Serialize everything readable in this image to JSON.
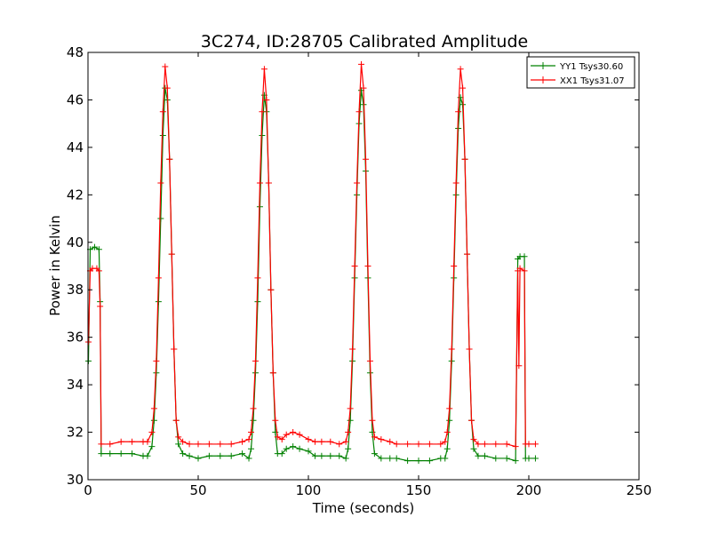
{
  "chart_data": {
    "type": "line",
    "title": "3C274, ID:28705 Calibrated Amplitude",
    "xlabel": "Time (seconds)",
    "ylabel": "Power in Kelvin",
    "xlim": [
      0,
      250
    ],
    "ylim": [
      30,
      48
    ],
    "xticks": [
      0,
      50,
      100,
      150,
      200,
      250
    ],
    "yticks": [
      30,
      32,
      34,
      36,
      38,
      40,
      42,
      44,
      46,
      48
    ],
    "grid": false,
    "legend_position": "top-right",
    "marker": "+",
    "series": [
      {
        "name": "YY1 Tsys30.60",
        "color": "#008000",
        "points": [
          [
            0.2,
            35.0
          ],
          [
            1,
            39.7
          ],
          [
            3,
            39.8
          ],
          [
            5,
            39.7
          ],
          [
            5.5,
            37.5
          ],
          [
            6,
            31.1
          ],
          [
            10,
            31.1
          ],
          [
            15,
            31.1
          ],
          [
            20,
            31.1
          ],
          [
            25,
            31.0
          ],
          [
            27,
            31.0
          ],
          [
            29,
            31.4
          ],
          [
            30,
            32.5
          ],
          [
            31,
            34.5
          ],
          [
            32,
            37.5
          ],
          [
            33,
            41.0
          ],
          [
            34,
            44.5
          ],
          [
            35,
            46.5
          ],
          [
            36,
            46.0
          ],
          [
            37,
            43.5
          ],
          [
            38,
            39.5
          ],
          [
            39,
            35.5
          ],
          [
            40,
            32.5
          ],
          [
            41,
            31.5
          ],
          [
            43,
            31.1
          ],
          [
            46,
            31.0
          ],
          [
            50,
            30.9
          ],
          [
            55,
            31.0
          ],
          [
            60,
            31.0
          ],
          [
            65,
            31.0
          ],
          [
            70,
            31.1
          ],
          [
            73,
            30.9
          ],
          [
            74,
            31.3
          ],
          [
            75,
            32.5
          ],
          [
            76,
            34.5
          ],
          [
            77,
            37.5
          ],
          [
            78,
            41.5
          ],
          [
            79,
            44.5
          ],
          [
            80,
            46.2
          ],
          [
            81,
            45.5
          ],
          [
            82,
            42.5
          ],
          [
            83,
            38.0
          ],
          [
            84,
            34.5
          ],
          [
            85,
            32.0
          ],
          [
            86,
            31.1
          ],
          [
            88,
            31.1
          ],
          [
            90,
            31.3
          ],
          [
            93,
            31.4
          ],
          [
            96,
            31.3
          ],
          [
            100,
            31.2
          ],
          [
            103,
            31.0
          ],
          [
            106,
            31.0
          ],
          [
            110,
            31.0
          ],
          [
            114,
            31.0
          ],
          [
            117,
            30.9
          ],
          [
            118,
            31.3
          ],
          [
            119,
            32.5
          ],
          [
            120,
            35.0
          ],
          [
            121,
            38.5
          ],
          [
            122,
            42.0
          ],
          [
            123,
            45.0
          ],
          [
            124,
            46.4
          ],
          [
            125,
            45.8
          ],
          [
            126,
            43.0
          ],
          [
            127,
            38.5
          ],
          [
            128,
            34.5
          ],
          [
            129,
            32.0
          ],
          [
            130,
            31.1
          ],
          [
            133,
            30.9
          ],
          [
            137,
            30.9
          ],
          [
            140,
            30.9
          ],
          [
            145,
            30.8
          ],
          [
            150,
            30.8
          ],
          [
            155,
            30.8
          ],
          [
            160,
            30.9
          ],
          [
            162,
            30.9
          ],
          [
            163,
            31.3
          ],
          [
            164,
            32.5
          ],
          [
            165,
            35.0
          ],
          [
            166,
            38.5
          ],
          [
            167,
            42.0
          ],
          [
            168,
            44.8
          ],
          [
            169,
            46.1
          ],
          [
            170,
            45.8
          ],
          [
            171,
            43.5
          ],
          [
            172,
            39.5
          ],
          [
            173,
            35.5
          ],
          [
            174,
            32.5
          ],
          [
            175,
            31.3
          ],
          [
            177,
            31.0
          ],
          [
            180,
            31.0
          ],
          [
            185,
            30.9
          ],
          [
            190,
            30.9
          ],
          [
            194,
            30.8
          ],
          [
            195,
            39.3
          ],
          [
            196,
            39.4
          ],
          [
            198,
            39.4
          ],
          [
            198.5,
            30.9
          ],
          [
            200,
            30.9
          ],
          [
            203,
            30.9
          ]
        ]
      },
      {
        "name": "XX1 Tsys31.07",
        "color": "#ff0000",
        "points": [
          [
            0.2,
            35.8
          ],
          [
            1,
            38.8
          ],
          [
            2,
            38.9
          ],
          [
            4,
            38.9
          ],
          [
            5,
            38.8
          ],
          [
            5.5,
            37.3
          ],
          [
            6,
            31.5
          ],
          [
            10,
            31.5
          ],
          [
            15,
            31.6
          ],
          [
            20,
            31.6
          ],
          [
            25,
            31.6
          ],
          [
            27,
            31.6
          ],
          [
            29,
            32.0
          ],
          [
            30,
            33.0
          ],
          [
            31,
            35.0
          ],
          [
            32,
            38.5
          ],
          [
            33,
            42.5
          ],
          [
            34,
            45.5
          ],
          [
            35,
            47.4
          ],
          [
            36,
            46.5
          ],
          [
            37,
            43.5
          ],
          [
            38,
            39.5
          ],
          [
            39,
            35.5
          ],
          [
            40,
            32.5
          ],
          [
            41,
            31.8
          ],
          [
            43,
            31.6
          ],
          [
            46,
            31.5
          ],
          [
            50,
            31.5
          ],
          [
            55,
            31.5
          ],
          [
            60,
            31.5
          ],
          [
            65,
            31.5
          ],
          [
            70,
            31.6
          ],
          [
            73,
            31.7
          ],
          [
            74,
            32.0
          ],
          [
            75,
            33.0
          ],
          [
            76,
            35.0
          ],
          [
            77,
            38.5
          ],
          [
            78,
            42.5
          ],
          [
            79,
            45.5
          ],
          [
            80,
            47.3
          ],
          [
            81,
            46.0
          ],
          [
            82,
            42.5
          ],
          [
            83,
            38.0
          ],
          [
            84,
            34.5
          ],
          [
            85,
            32.5
          ],
          [
            86,
            31.8
          ],
          [
            88,
            31.7
          ],
          [
            90,
            31.9
          ],
          [
            93,
            32.0
          ],
          [
            96,
            31.9
          ],
          [
            100,
            31.7
          ],
          [
            103,
            31.6
          ],
          [
            106,
            31.6
          ],
          [
            110,
            31.6
          ],
          [
            114,
            31.5
          ],
          [
            117,
            31.6
          ],
          [
            118,
            32.0
          ],
          [
            119,
            33.0
          ],
          [
            120,
            35.5
          ],
          [
            121,
            39.0
          ],
          [
            122,
            42.5
          ],
          [
            123,
            45.5
          ],
          [
            124,
            47.5
          ],
          [
            125,
            46.5
          ],
          [
            126,
            43.5
          ],
          [
            127,
            39.0
          ],
          [
            128,
            35.0
          ],
          [
            129,
            32.5
          ],
          [
            130,
            31.8
          ],
          [
            133,
            31.7
          ],
          [
            137,
            31.6
          ],
          [
            140,
            31.5
          ],
          [
            145,
            31.5
          ],
          [
            150,
            31.5
          ],
          [
            155,
            31.5
          ],
          [
            160,
            31.5
          ],
          [
            162,
            31.6
          ],
          [
            163,
            32.0
          ],
          [
            164,
            33.0
          ],
          [
            165,
            35.5
          ],
          [
            166,
            39.0
          ],
          [
            167,
            42.5
          ],
          [
            168,
            45.5
          ],
          [
            169,
            47.3
          ],
          [
            170,
            46.5
          ],
          [
            171,
            43.5
          ],
          [
            172,
            39.5
          ],
          [
            173,
            35.5
          ],
          [
            174,
            32.5
          ],
          [
            175,
            31.7
          ],
          [
            177,
            31.5
          ],
          [
            180,
            31.5
          ],
          [
            185,
            31.5
          ],
          [
            190,
            31.5
          ],
          [
            194,
            31.4
          ],
          [
            195,
            38.8
          ],
          [
            195.5,
            34.8
          ],
          [
            196,
            38.9
          ],
          [
            198,
            38.8
          ],
          [
            198.5,
            31.5
          ],
          [
            200,
            31.5
          ],
          [
            203,
            31.5
          ]
        ]
      }
    ]
  }
}
